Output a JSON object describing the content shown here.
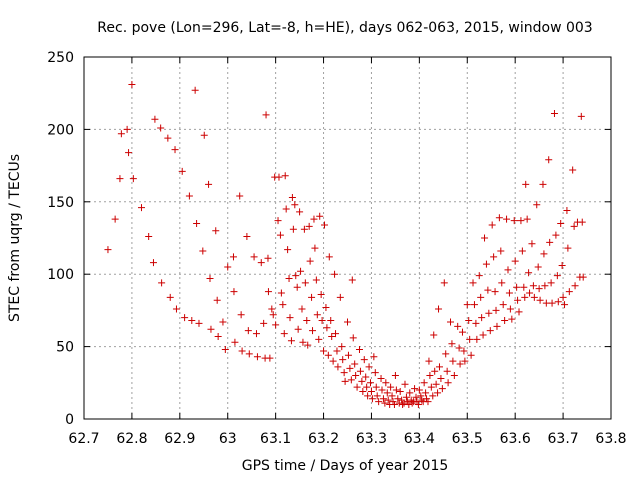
{
  "chart_data": {
    "type": "scatter",
    "title": "Rec. pove (Lon=296, Lat=-8, h=HE), days 062-063, 2015, window 003",
    "xlabel": "GPS time / Days of year 2015",
    "ylabel": "STEC from uqrg / TECUs",
    "xlim": [
      62.7,
      63.8
    ],
    "ylim": [
      0,
      250
    ],
    "xticks": [
      "62.7",
      "62.8",
      "62.9",
      "63",
      "63.1",
      "63.2",
      "63.3",
      "63.4",
      "63.5",
      "63.6",
      "63.7",
      "63.8"
    ],
    "yticks": [
      "0",
      "50",
      "100",
      "150",
      "200",
      "250"
    ],
    "grid": true,
    "marker": "plus",
    "color": "#cc0000",
    "series": [
      {
        "name": "",
        "points": [
          [
            62.75,
            117
          ],
          [
            62.765,
            138
          ],
          [
            62.775,
            166
          ],
          [
            62.778,
            197
          ],
          [
            62.79,
            200
          ],
          [
            62.793,
            184
          ],
          [
            62.8,
            231
          ],
          [
            62.803,
            166
          ],
          [
            62.82,
            146
          ],
          [
            62.835,
            126
          ],
          [
            62.845,
            108
          ],
          [
            62.848,
            207
          ],
          [
            62.86,
            201
          ],
          [
            62.862,
            94
          ],
          [
            62.875,
            194
          ],
          [
            62.88,
            84
          ],
          [
            62.89,
            186
          ],
          [
            62.893,
            76
          ],
          [
            62.905,
            171
          ],
          [
            62.91,
            70
          ],
          [
            62.92,
            154
          ],
          [
            62.925,
            68
          ],
          [
            62.932,
            227
          ],
          [
            62.935,
            135
          ],
          [
            62.94,
            66
          ],
          [
            62.948,
            116
          ],
          [
            62.951,
            196
          ],
          [
            62.96,
            162
          ],
          [
            62.963,
            97
          ],
          [
            62.965,
            62
          ],
          [
            62.975,
            130
          ],
          [
            62.978,
            82
          ],
          [
            62.98,
            57
          ],
          [
            62.99,
            67
          ],
          [
            62.995,
            48
          ],
          [
            63.0,
            105
          ],
          [
            63.012,
            112
          ],
          [
            63.013,
            88
          ],
          [
            63.015,
            53
          ],
          [
            63.025,
            154
          ],
          [
            63.028,
            72
          ],
          [
            63.03,
            47
          ],
          [
            63.04,
            126
          ],
          [
            63.043,
            61
          ],
          [
            63.045,
            45
          ],
          [
            63.055,
            112
          ],
          [
            63.06,
            59
          ],
          [
            63.062,
            43
          ],
          [
            63.07,
            108
          ],
          [
            63.075,
            66
          ],
          [
            63.078,
            42
          ],
          [
            63.08,
            210
          ],
          [
            63.084,
            111
          ],
          [
            63.085,
            88
          ],
          [
            63.088,
            42
          ],
          [
            63.092,
            76
          ],
          [
            63.095,
            72
          ],
          [
            63.098,
            167
          ],
          [
            63.1,
            65
          ],
          [
            63.105,
            137
          ],
          [
            63.107,
            167
          ],
          [
            63.11,
            127
          ],
          [
            63.112,
            87
          ],
          [
            63.115,
            79
          ],
          [
            63.118,
            59
          ],
          [
            63.12,
            168
          ],
          [
            63.122,
            145
          ],
          [
            63.125,
            117
          ],
          [
            63.128,
            97
          ],
          [
            63.13,
            70
          ],
          [
            63.133,
            54
          ],
          [
            63.135,
            153
          ],
          [
            63.137,
            131
          ],
          [
            63.14,
            148
          ],
          [
            63.142,
            99
          ],
          [
            63.145,
            91
          ],
          [
            63.147,
            62
          ],
          [
            63.15,
            143
          ],
          [
            63.152,
            102
          ],
          [
            63.155,
            76
          ],
          [
            63.157,
            53
          ],
          [
            63.16,
            131
          ],
          [
            63.162,
            94
          ],
          [
            63.165,
            68
          ],
          [
            63.167,
            51
          ],
          [
            63.17,
            133
          ],
          [
            63.172,
            109
          ],
          [
            63.175,
            84
          ],
          [
            63.177,
            61
          ],
          [
            63.18,
            138
          ],
          [
            63.182,
            118
          ],
          [
            63.185,
            96
          ],
          [
            63.187,
            72
          ],
          [
            63.19,
            55
          ],
          [
            63.192,
            140
          ],
          [
            63.195,
            86
          ],
          [
            63.197,
            68
          ],
          [
            63.2,
            47
          ],
          [
            63.202,
            134
          ],
          [
            63.205,
            77
          ],
          [
            63.207,
            63
          ],
          [
            63.21,
            44
          ],
          [
            63.212,
            112
          ],
          [
            63.215,
            68
          ],
          [
            63.217,
            57
          ],
          [
            63.22,
            40
          ],
          [
            63.223,
            100
          ],
          [
            63.225,
            59
          ],
          [
            63.228,
            47
          ],
          [
            63.23,
            36
          ],
          [
            63.235,
            84
          ],
          [
            63.238,
            50
          ],
          [
            63.24,
            41
          ],
          [
            63.243,
            32
          ],
          [
            63.245,
            26
          ],
          [
            63.25,
            67
          ],
          [
            63.252,
            44
          ],
          [
            63.255,
            35
          ],
          [
            63.258,
            27
          ],
          [
            63.26,
            96
          ],
          [
            63.262,
            56
          ],
          [
            63.265,
            38
          ],
          [
            63.267,
            30
          ],
          [
            63.27,
            22
          ],
          [
            63.275,
            48
          ],
          [
            63.277,
            33
          ],
          [
            63.28,
            26
          ],
          [
            63.282,
            19
          ],
          [
            63.285,
            41
          ],
          [
            63.288,
            29
          ],
          [
            63.29,
            22
          ],
          [
            63.292,
            16
          ],
          [
            63.295,
            36
          ],
          [
            63.298,
            25
          ],
          [
            63.3,
            19
          ],
          [
            63.302,
            14
          ],
          [
            63.305,
            43
          ],
          [
            63.308,
            32
          ],
          [
            63.31,
            22
          ],
          [
            63.312,
            16
          ],
          [
            63.315,
            12
          ],
          [
            63.32,
            28
          ],
          [
            63.322,
            20
          ],
          [
            63.325,
            14
          ],
          [
            63.328,
            11
          ],
          [
            63.33,
            25
          ],
          [
            63.333,
            18
          ],
          [
            63.335,
            13
          ],
          [
            63.338,
            10
          ],
          [
            63.34,
            22
          ],
          [
            63.343,
            16
          ],
          [
            63.345,
            12
          ],
          [
            63.348,
            10
          ],
          [
            63.35,
            30
          ],
          [
            63.352,
            20
          ],
          [
            63.355,
            14
          ],
          [
            63.358,
            11
          ],
          [
            63.36,
            19
          ],
          [
            63.363,
            13
          ],
          [
            63.365,
            10
          ],
          [
            63.368,
            11
          ],
          [
            63.37,
            24
          ],
          [
            63.373,
            15
          ],
          [
            63.375,
            12
          ],
          [
            63.378,
            10
          ],
          [
            63.38,
            18
          ],
          [
            63.383,
            13
          ],
          [
            63.385,
            11
          ],
          [
            63.388,
            12
          ],
          [
            63.39,
            21
          ],
          [
            63.393,
            15
          ],
          [
            63.395,
            12
          ],
          [
            63.398,
            10
          ],
          [
            63.4,
            20
          ],
          [
            63.403,
            16
          ],
          [
            63.405,
            13
          ],
          [
            63.408,
            12
          ],
          [
            63.41,
            25
          ],
          [
            63.413,
            18
          ],
          [
            63.415,
            14
          ],
          [
            63.418,
            12
          ],
          [
            63.42,
            40
          ],
          [
            63.422,
            30
          ],
          [
            63.425,
            22
          ],
          [
            63.428,
            16
          ],
          [
            63.43,
            58
          ],
          [
            63.432,
            33
          ],
          [
            63.435,
            24
          ],
          [
            63.438,
            18
          ],
          [
            63.44,
            76
          ],
          [
            63.442,
            36
          ],
          [
            63.445,
            28
          ],
          [
            63.448,
            21
          ],
          [
            63.452,
            94
          ],
          [
            63.455,
            45
          ],
          [
            63.458,
            33
          ],
          [
            63.46,
            25
          ],
          [
            63.465,
            67
          ],
          [
            63.468,
            52
          ],
          [
            63.47,
            40
          ],
          [
            63.473,
            30
          ],
          [
            63.48,
            64
          ],
          [
            63.483,
            49
          ],
          [
            63.485,
            38
          ],
          [
            63.49,
            60
          ],
          [
            63.493,
            47
          ],
          [
            63.495,
            40
          ],
          [
            63.5,
            79
          ],
          [
            63.503,
            68
          ],
          [
            63.505,
            55
          ],
          [
            63.508,
            44
          ],
          [
            63.512,
            94
          ],
          [
            63.515,
            79
          ],
          [
            63.518,
            66
          ],
          [
            63.52,
            55
          ],
          [
            63.525,
            99
          ],
          [
            63.528,
            84
          ],
          [
            63.53,
            70
          ],
          [
            63.533,
            58
          ],
          [
            63.536,
            125
          ],
          [
            63.54,
            107
          ],
          [
            63.543,
            89
          ],
          [
            63.545,
            73
          ],
          [
            63.548,
            61
          ],
          [
            63.552,
            134
          ],
          [
            63.555,
            112
          ],
          [
            63.558,
            88
          ],
          [
            63.56,
            75
          ],
          [
            63.562,
            64
          ],
          [
            63.567,
            139
          ],
          [
            63.57,
            116
          ],
          [
            63.572,
            94
          ],
          [
            63.575,
            79
          ],
          [
            63.578,
            68
          ],
          [
            63.582,
            138
          ],
          [
            63.585,
            103
          ],
          [
            63.588,
            87
          ],
          [
            63.59,
            76
          ],
          [
            63.593,
            69
          ],
          [
            63.598,
            137
          ],
          [
            63.6,
            109
          ],
          [
            63.603,
            91
          ],
          [
            63.605,
            82
          ],
          [
            63.608,
            74
          ],
          [
            63.612,
            137
          ],
          [
            63.615,
            116
          ],
          [
            63.618,
            91
          ],
          [
            63.62,
            84
          ],
          [
            63.622,
            162
          ],
          [
            63.625,
            138
          ],
          [
            63.628,
            101
          ],
          [
            63.63,
            87
          ],
          [
            63.635,
            121
          ],
          [
            63.638,
            92
          ],
          [
            63.64,
            84
          ],
          [
            63.645,
            148
          ],
          [
            63.648,
            105
          ],
          [
            63.65,
            90
          ],
          [
            63.652,
            82
          ],
          [
            63.658,
            162
          ],
          [
            63.66,
            114
          ],
          [
            63.662,
            92
          ],
          [
            63.665,
            80
          ],
          [
            63.67,
            179
          ],
          [
            63.672,
            122
          ],
          [
            63.675,
            94
          ],
          [
            63.677,
            80
          ],
          [
            63.682,
            211
          ],
          [
            63.685,
            127
          ],
          [
            63.688,
            99
          ],
          [
            63.69,
            81
          ],
          [
            63.695,
            135
          ],
          [
            63.698,
            106
          ],
          [
            63.7,
            84
          ],
          [
            63.703,
            79
          ],
          [
            63.708,
            144
          ],
          [
            63.71,
            118
          ],
          [
            63.713,
            88
          ],
          [
            63.72,
            172
          ],
          [
            63.723,
            133
          ],
          [
            63.725,
            92
          ],
          [
            63.73,
            136
          ],
          [
            63.735,
            98
          ],
          [
            63.738,
            209
          ],
          [
            63.74,
            136
          ],
          [
            63.742,
            98
          ]
        ]
      }
    ]
  }
}
